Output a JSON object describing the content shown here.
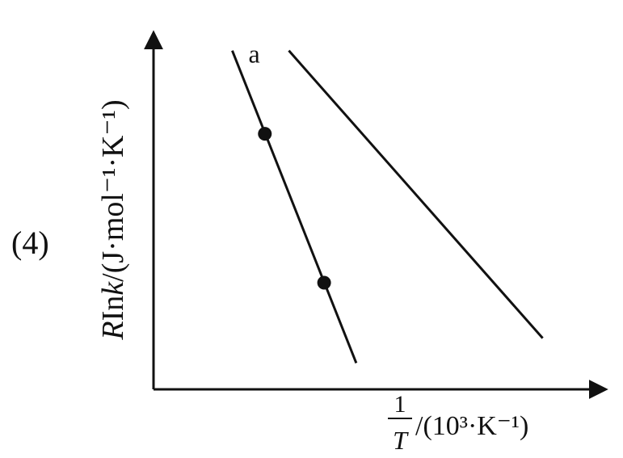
{
  "question_label": "(4)",
  "chart_data": {
    "type": "line",
    "title": "",
    "ylabel": {
      "prefix_R": "R",
      "prefix_ln": "In",
      "prefix_k": "k",
      "unit": "/(J·mol⁻¹·K⁻¹)"
    },
    "xlabel": {
      "frac_num": "1",
      "frac_den": "T",
      "unit": "/(10³·K⁻¹)"
    },
    "grid": false,
    "legend": "none",
    "xlim": [
      0,
      10
    ],
    "ylim": [
      0,
      10
    ],
    "series": [
      {
        "name": "a",
        "color": "#111111",
        "points": [
          [
            1.74,
            9.53
          ],
          [
            4.48,
            0.74
          ]
        ],
        "markers": [
          [
            2.46,
            7.19
          ],
          [
            3.77,
            3.0
          ]
        ]
      },
      {
        "name": "",
        "color": "#111111",
        "points": [
          [
            2.99,
            9.53
          ],
          [
            8.6,
            1.44
          ]
        ],
        "markers": []
      }
    ]
  }
}
